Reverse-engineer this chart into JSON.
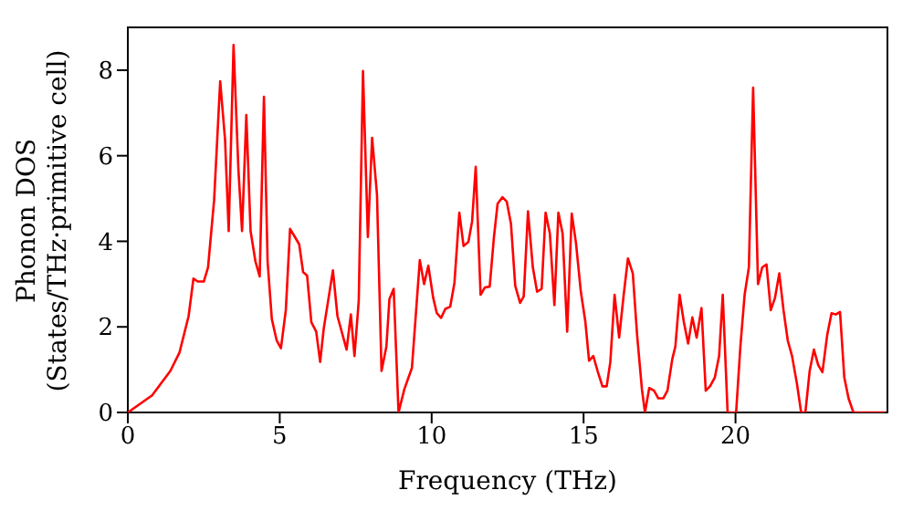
{
  "chart_data": {
    "type": "line",
    "xlabel": "Frequency (THz)",
    "ylabel": "Phonon DOS\n(States/THz·primitive cell)",
    "xlim": [
      0,
      25
    ],
    "xticks": [
      0,
      5,
      10,
      15,
      20
    ],
    "ylim": [
      0,
      9
    ],
    "yticks": [
      0,
      2,
      4,
      6,
      8
    ],
    "grid": false,
    "legend": false,
    "marker": "none",
    "line_style": "solid",
    "x": [
      0,
      0.8,
      1.4,
      1.7,
      2.0,
      2.16,
      2.3,
      2.5,
      2.64,
      2.84,
      3.04,
      3.2,
      3.32,
      3.48,
      3.64,
      3.76,
      3.9,
      4.04,
      4.2,
      4.34,
      4.48,
      4.6,
      4.74,
      4.9,
      5.04,
      5.2,
      5.34,
      5.5,
      5.64,
      5.77,
      5.9,
      6.04,
      6.2,
      6.33,
      6.45,
      6.75,
      6.9,
      7.2,
      7.34,
      7.46,
      7.6,
      7.74,
      7.9,
      8.04,
      8.2,
      8.35,
      8.51,
      8.61,
      8.75,
      8.91,
      9.1,
      9.35,
      9.61,
      9.75,
      9.89,
      10.05,
      10.17,
      10.31,
      10.45,
      10.61,
      10.75,
      10.91,
      11.05,
      11.21,
      11.33,
      11.45,
      11.61,
      11.75,
      11.91,
      12.05,
      12.17,
      12.33,
      12.47,
      12.61,
      12.75,
      12.91,
      13.03,
      13.17,
      13.33,
      13.47,
      13.62,
      13.75,
      13.89,
      14.04,
      14.17,
      14.31,
      14.46,
      14.61,
      14.75,
      14.91,
      15.06,
      15.18,
      15.32,
      15.46,
      15.62,
      15.76,
      15.88,
      16.02,
      16.17,
      16.32,
      16.46,
      16.62,
      16.76,
      16.92,
      17.02,
      17.16,
      17.32,
      17.46,
      17.62,
      17.76,
      17.92,
      18.02,
      18.16,
      18.3,
      18.44,
      18.58,
      18.72,
      18.88,
      19.02,
      19.16,
      19.32,
      19.46,
      19.58,
      19.74,
      20.02,
      20.16,
      20.3,
      20.44,
      20.58,
      20.74,
      20.88,
      21.02,
      21.16,
      21.3,
      21.44,
      21.58,
      21.72,
      21.86,
      22.02,
      22.16,
      22.3,
      22.44,
      22.58,
      22.72,
      22.86,
      23.02,
      23.16,
      23.3,
      23.44,
      23.58,
      23.72,
      23.88,
      24.92
    ],
    "series": [
      {
        "color": "#ff0000",
        "values": [
          0,
          0.4,
          0.97,
          1.4,
          2.25,
          3.13,
          3.06,
          3.06,
          3.39,
          4.96,
          7.74,
          6.38,
          4.24,
          8.59,
          5.67,
          4.24,
          6.95,
          4.24,
          3.53,
          3.18,
          7.38,
          3.53,
          2.18,
          1.68,
          1.5,
          2.39,
          4.29,
          4.1,
          3.93,
          3.28,
          3.2,
          2.11,
          1.89,
          1.18,
          1.97,
          3.32,
          2.25,
          1.47,
          2.29,
          1.32,
          2.61,
          7.98,
          4.1,
          6.42,
          5.1,
          0.97,
          1.54,
          2.65,
          2.89,
          0,
          0.54,
          1.04,
          3.56,
          3.0,
          3.43,
          2.68,
          2.32,
          2.21,
          2.42,
          2.47,
          3.03,
          4.67,
          3.89,
          3.99,
          4.46,
          5.74,
          2.75,
          2.92,
          2.94,
          4.1,
          4.88,
          5.03,
          4.93,
          4.41,
          2.96,
          2.56,
          2.71,
          4.7,
          3.39,
          2.82,
          2.89,
          4.67,
          4.18,
          2.51,
          4.67,
          4.18,
          1.89,
          4.65,
          3.96,
          2.82,
          2.11,
          1.21,
          1.32,
          0.97,
          0.61,
          0.61,
          1.18,
          2.75,
          1.75,
          2.75,
          3.6,
          3.25,
          1.82,
          0.54,
          0,
          0.57,
          0.51,
          0.33,
          0.33,
          0.51,
          1.25,
          1.54,
          2.75,
          2.11,
          1.61,
          2.22,
          1.75,
          2.44,
          0.51,
          0.61,
          0.82,
          1.32,
          2.75,
          0,
          0,
          1.54,
          2.75,
          3.39,
          7.59,
          3.0,
          3.39,
          3.46,
          2.39,
          2.68,
          3.25,
          2.39,
          1.68,
          1.32,
          0.68,
          0,
          0,
          0.97,
          1.47,
          1.11,
          0.94,
          1.82,
          2.32,
          2.29,
          2.35,
          0.82,
          0.33,
          0,
          0
        ]
      }
    ]
  }
}
